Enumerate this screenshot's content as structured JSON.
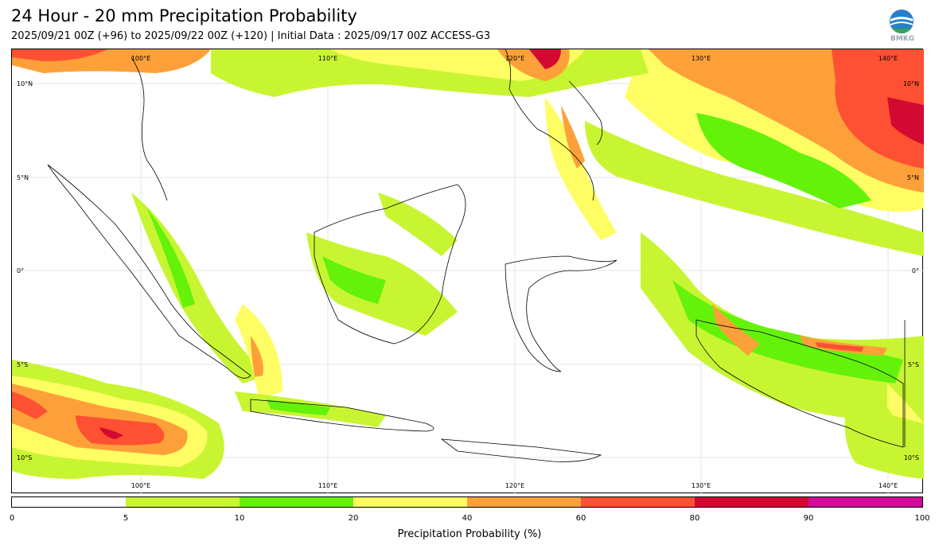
{
  "header": {
    "title": "24 Hour - 20 mm Precipitation Probability",
    "subtitle": "2025/09/21 00Z (+96) to 2025/09/22 00Z (+120) | Initial Data : 2025/09/17 00Z ACCESS-G3",
    "logo_text": "BMKG"
  },
  "map": {
    "lon_labels": [
      "100°E",
      "110°E",
      "120°E",
      "130°E",
      "140°E"
    ],
    "lat_labels_left": [
      "10°N",
      "5°N",
      "0°",
      "5°S",
      "10°S"
    ],
    "lat_labels_right": [
      "10°N",
      "5°N",
      "0°",
      "5°S",
      "10°S"
    ]
  },
  "colorbar": {
    "label": "Precipitation Probability (%)",
    "ticks": [
      "0",
      "5",
      "10",
      "20",
      "40",
      "60",
      "80",
      "90",
      "100"
    ],
    "colors": [
      "#ffffff",
      "#c8f532",
      "#64f20a",
      "#fefe64",
      "#fea03a",
      "#fe5032",
      "#d20a32",
      "#d20a9a"
    ]
  }
}
